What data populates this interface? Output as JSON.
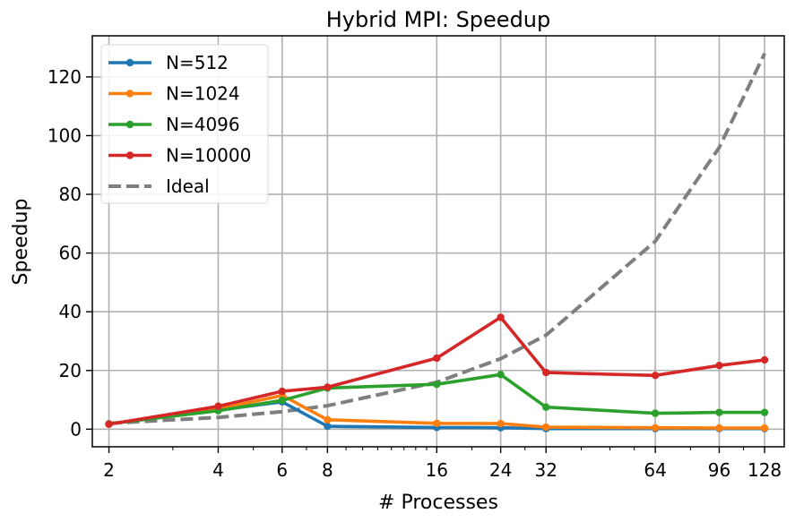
{
  "chart_data": {
    "type": "line",
    "title": "Hybrid MPI: Speedup",
    "xlabel": "# Processes",
    "ylabel": "Speedup",
    "x_scale": "log2",
    "x": [
      2,
      4,
      6,
      8,
      16,
      24,
      32,
      64,
      96,
      128
    ],
    "x_tick_labels": [
      "2",
      "4",
      "6",
      "8",
      "16",
      "24",
      "32",
      "64",
      "96",
      "128"
    ],
    "y_ticks": [
      0,
      20,
      40,
      60,
      80,
      100,
      120
    ],
    "xlim": [
      1.8,
      145
    ],
    "ylim": [
      -6,
      134
    ],
    "grid": true,
    "legend_position": "top-left",
    "series": [
      {
        "name": "N=512",
        "color": "#1f77b4",
        "style": "solid-marker",
        "values": [
          1.8,
          6.5,
          9.3,
          1.0,
          0.6,
          0.5,
          0.2,
          0.2,
          0.2,
          0.2
        ]
      },
      {
        "name": "N=1024",
        "color": "#ff7f0e",
        "style": "solid-marker",
        "values": [
          1.8,
          6.8,
          11.5,
          3.2,
          2.0,
          1.9,
          0.7,
          0.5,
          0.4,
          0.4
        ]
      },
      {
        "name": "N=4096",
        "color": "#2ca02c",
        "style": "solid-marker",
        "values": [
          1.8,
          6.3,
          9.8,
          14.0,
          15.3,
          18.6,
          7.5,
          5.4,
          5.7,
          5.7
        ]
      },
      {
        "name": "N=10000",
        "color": "#d62728",
        "style": "solid-marker",
        "values": [
          1.7,
          7.8,
          12.9,
          14.3,
          24.2,
          38.1,
          19.3,
          18.3,
          21.7,
          23.6
        ]
      },
      {
        "name": "Ideal",
        "color": "#7f7f7f",
        "style": "dashed",
        "values": [
          2,
          4,
          6,
          8,
          16,
          24,
          32,
          64,
          96,
          128
        ]
      }
    ]
  }
}
